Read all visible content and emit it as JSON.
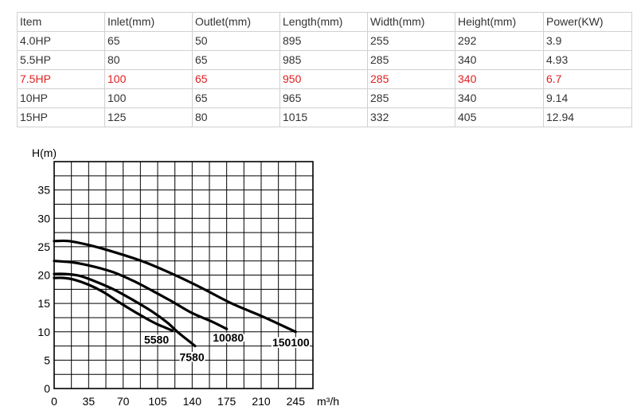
{
  "table": {
    "headers": [
      "Item",
      "Inlet(mm)",
      "Outlet(mm)",
      "Length(mm)",
      "Width(mm)",
      "Height(mm)",
      "Power(KW)"
    ],
    "rows": [
      [
        "4.0HP",
        "65",
        "50",
        "895",
        "255",
        "292",
        "3.9"
      ],
      [
        "5.5HP",
        "80",
        "65",
        "985",
        "285",
        "340",
        "4.93"
      ],
      [
        "7.5HP",
        "100",
        "65",
        "950",
        "285",
        "340",
        "6.7"
      ],
      [
        "10HP",
        "100",
        "65",
        "965",
        "285",
        "340",
        "9.14"
      ],
      [
        "15HP",
        "125",
        "80",
        "1015",
        "332",
        "405",
        "12.94"
      ]
    ],
    "highlight_row": 2,
    "highlight_color": "#e02020"
  },
  "chart_data": {
    "type": "line",
    "title": "",
    "ylabel": "H(m)",
    "xlabel": "m³/h",
    "xlim": [
      0,
      262.5
    ],
    "ylim": [
      0,
      40
    ],
    "x_ticks": [
      0,
      35,
      70,
      105,
      140,
      175,
      210,
      245
    ],
    "y_ticks": [
      0,
      5,
      10,
      15,
      20,
      25,
      30,
      35
    ],
    "grid": true,
    "line_color": "#000000",
    "series": [
      {
        "name": "5580",
        "x": [
          0,
          10,
          20,
          35,
          50,
          65,
          80,
          95,
          105,
          112,
          120
        ],
        "y": [
          19.5,
          19.5,
          19.2,
          18.3,
          17.0,
          15.3,
          13.7,
          12.2,
          11.3,
          10.8,
          10.2
        ]
      },
      {
        "name": "7580",
        "x": [
          0,
          10,
          25,
          40,
          60,
          80,
          100,
          115,
          125,
          135,
          143
        ],
        "y": [
          20.2,
          20.2,
          19.9,
          19.0,
          17.5,
          15.6,
          13.5,
          11.6,
          10.0,
          8.6,
          7.5
        ]
      },
      {
        "name": "10080",
        "x": [
          0,
          20,
          40,
          60,
          80,
          100,
          120,
          140,
          160,
          175
        ],
        "y": [
          22.5,
          22.2,
          21.5,
          20.5,
          19.0,
          17.2,
          15.3,
          13.3,
          11.8,
          10.5
        ]
      },
      {
        "name": "150100",
        "x": [
          0,
          15,
          35,
          60,
          90,
          120,
          150,
          180,
          210,
          230,
          245
        ],
        "y": [
          26.0,
          26.0,
          25.3,
          24.1,
          22.4,
          20.2,
          17.7,
          15.0,
          12.8,
          11.2,
          10.0
        ]
      }
    ]
  }
}
